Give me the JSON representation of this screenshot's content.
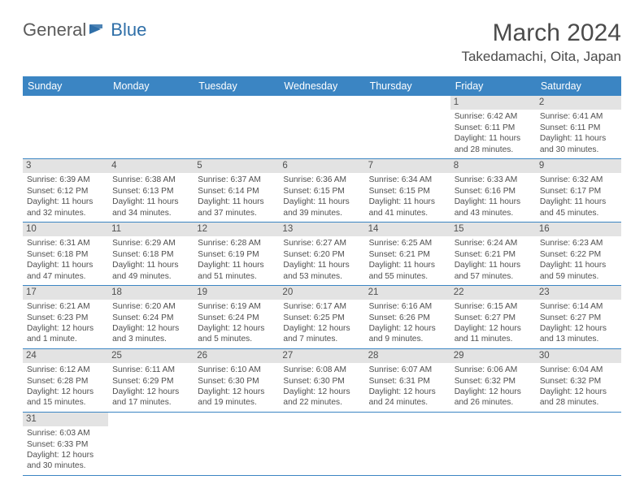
{
  "logo": {
    "text1": "General",
    "text2": "Blue"
  },
  "header": {
    "title": "March 2024",
    "location": "Takedamachi, Oita, Japan"
  },
  "colors": {
    "header_bg": "#3b85c3",
    "header_text": "#ffffff",
    "daynum_bg": "#e3e3e3",
    "border": "#3b85c3",
    "logo_blue": "#2f6fa8",
    "logo_gray": "#5b5b5b"
  },
  "day_names": [
    "Sunday",
    "Monday",
    "Tuesday",
    "Wednesday",
    "Thursday",
    "Friday",
    "Saturday"
  ],
  "weeks": [
    [
      null,
      null,
      null,
      null,
      null,
      {
        "n": "1",
        "sr": "Sunrise: 6:42 AM",
        "ss": "Sunset: 6:11 PM",
        "dl": "Daylight: 11 hours and 28 minutes."
      },
      {
        "n": "2",
        "sr": "Sunrise: 6:41 AM",
        "ss": "Sunset: 6:11 PM",
        "dl": "Daylight: 11 hours and 30 minutes."
      }
    ],
    [
      {
        "n": "3",
        "sr": "Sunrise: 6:39 AM",
        "ss": "Sunset: 6:12 PM",
        "dl": "Daylight: 11 hours and 32 minutes."
      },
      {
        "n": "4",
        "sr": "Sunrise: 6:38 AM",
        "ss": "Sunset: 6:13 PM",
        "dl": "Daylight: 11 hours and 34 minutes."
      },
      {
        "n": "5",
        "sr": "Sunrise: 6:37 AM",
        "ss": "Sunset: 6:14 PM",
        "dl": "Daylight: 11 hours and 37 minutes."
      },
      {
        "n": "6",
        "sr": "Sunrise: 6:36 AM",
        "ss": "Sunset: 6:15 PM",
        "dl": "Daylight: 11 hours and 39 minutes."
      },
      {
        "n": "7",
        "sr": "Sunrise: 6:34 AM",
        "ss": "Sunset: 6:15 PM",
        "dl": "Daylight: 11 hours and 41 minutes."
      },
      {
        "n": "8",
        "sr": "Sunrise: 6:33 AM",
        "ss": "Sunset: 6:16 PM",
        "dl": "Daylight: 11 hours and 43 minutes."
      },
      {
        "n": "9",
        "sr": "Sunrise: 6:32 AM",
        "ss": "Sunset: 6:17 PM",
        "dl": "Daylight: 11 hours and 45 minutes."
      }
    ],
    [
      {
        "n": "10",
        "sr": "Sunrise: 6:31 AM",
        "ss": "Sunset: 6:18 PM",
        "dl": "Daylight: 11 hours and 47 minutes."
      },
      {
        "n": "11",
        "sr": "Sunrise: 6:29 AM",
        "ss": "Sunset: 6:18 PM",
        "dl": "Daylight: 11 hours and 49 minutes."
      },
      {
        "n": "12",
        "sr": "Sunrise: 6:28 AM",
        "ss": "Sunset: 6:19 PM",
        "dl": "Daylight: 11 hours and 51 minutes."
      },
      {
        "n": "13",
        "sr": "Sunrise: 6:27 AM",
        "ss": "Sunset: 6:20 PM",
        "dl": "Daylight: 11 hours and 53 minutes."
      },
      {
        "n": "14",
        "sr": "Sunrise: 6:25 AM",
        "ss": "Sunset: 6:21 PM",
        "dl": "Daylight: 11 hours and 55 minutes."
      },
      {
        "n": "15",
        "sr": "Sunrise: 6:24 AM",
        "ss": "Sunset: 6:21 PM",
        "dl": "Daylight: 11 hours and 57 minutes."
      },
      {
        "n": "16",
        "sr": "Sunrise: 6:23 AM",
        "ss": "Sunset: 6:22 PM",
        "dl": "Daylight: 11 hours and 59 minutes."
      }
    ],
    [
      {
        "n": "17",
        "sr": "Sunrise: 6:21 AM",
        "ss": "Sunset: 6:23 PM",
        "dl": "Daylight: 12 hours and 1 minute."
      },
      {
        "n": "18",
        "sr": "Sunrise: 6:20 AM",
        "ss": "Sunset: 6:24 PM",
        "dl": "Daylight: 12 hours and 3 minutes."
      },
      {
        "n": "19",
        "sr": "Sunrise: 6:19 AM",
        "ss": "Sunset: 6:24 PM",
        "dl": "Daylight: 12 hours and 5 minutes."
      },
      {
        "n": "20",
        "sr": "Sunrise: 6:17 AM",
        "ss": "Sunset: 6:25 PM",
        "dl": "Daylight: 12 hours and 7 minutes."
      },
      {
        "n": "21",
        "sr": "Sunrise: 6:16 AM",
        "ss": "Sunset: 6:26 PM",
        "dl": "Daylight: 12 hours and 9 minutes."
      },
      {
        "n": "22",
        "sr": "Sunrise: 6:15 AM",
        "ss": "Sunset: 6:27 PM",
        "dl": "Daylight: 12 hours and 11 minutes."
      },
      {
        "n": "23",
        "sr": "Sunrise: 6:14 AM",
        "ss": "Sunset: 6:27 PM",
        "dl": "Daylight: 12 hours and 13 minutes."
      }
    ],
    [
      {
        "n": "24",
        "sr": "Sunrise: 6:12 AM",
        "ss": "Sunset: 6:28 PM",
        "dl": "Daylight: 12 hours and 15 minutes."
      },
      {
        "n": "25",
        "sr": "Sunrise: 6:11 AM",
        "ss": "Sunset: 6:29 PM",
        "dl": "Daylight: 12 hours and 17 minutes."
      },
      {
        "n": "26",
        "sr": "Sunrise: 6:10 AM",
        "ss": "Sunset: 6:30 PM",
        "dl": "Daylight: 12 hours and 19 minutes."
      },
      {
        "n": "27",
        "sr": "Sunrise: 6:08 AM",
        "ss": "Sunset: 6:30 PM",
        "dl": "Daylight: 12 hours and 22 minutes."
      },
      {
        "n": "28",
        "sr": "Sunrise: 6:07 AM",
        "ss": "Sunset: 6:31 PM",
        "dl": "Daylight: 12 hours and 24 minutes."
      },
      {
        "n": "29",
        "sr": "Sunrise: 6:06 AM",
        "ss": "Sunset: 6:32 PM",
        "dl": "Daylight: 12 hours and 26 minutes."
      },
      {
        "n": "30",
        "sr": "Sunrise: 6:04 AM",
        "ss": "Sunset: 6:32 PM",
        "dl": "Daylight: 12 hours and 28 minutes."
      }
    ],
    [
      {
        "n": "31",
        "sr": "Sunrise: 6:03 AM",
        "ss": "Sunset: 6:33 PM",
        "dl": "Daylight: 12 hours and 30 minutes."
      },
      null,
      null,
      null,
      null,
      null,
      null
    ]
  ]
}
